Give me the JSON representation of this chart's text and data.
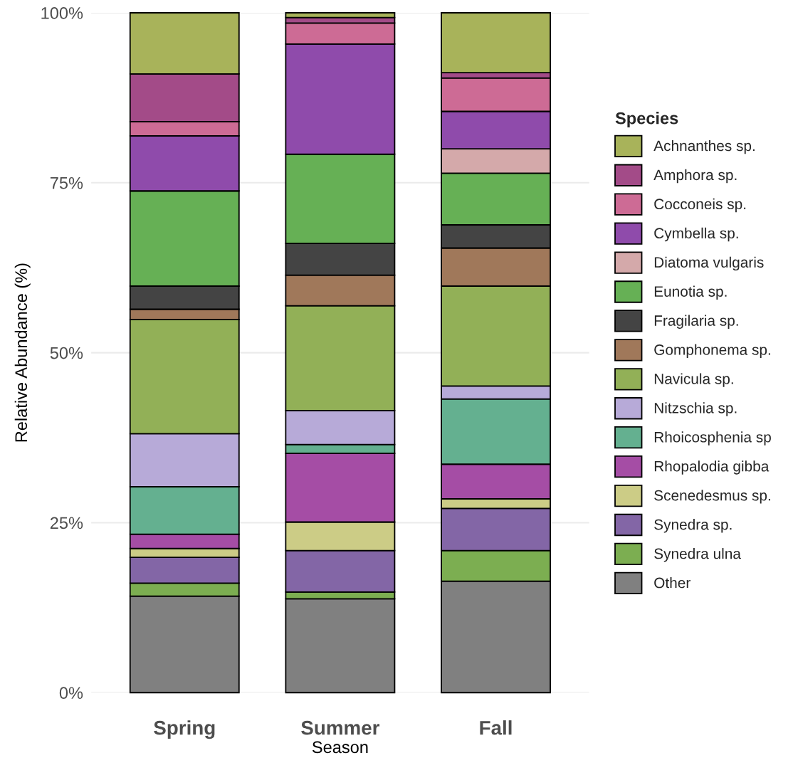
{
  "chart_data": {
    "type": "bar",
    "stacked": true,
    "xlabel": "Season",
    "ylabel": "Relative Abundance (%)",
    "legend_title": "Species",
    "legend": "right",
    "grid": "y",
    "categories": [
      "Spring",
      "Summer",
      "Fall"
    ],
    "ylim": [
      0,
      100
    ],
    "yticks": [
      {
        "value": 0,
        "label": "0%"
      },
      {
        "value": 25,
        "label": "25%"
      },
      {
        "value": 50,
        "label": "50%"
      },
      {
        "value": 75,
        "label": "75%"
      },
      {
        "value": 100,
        "label": "100%"
      }
    ],
    "series": [
      {
        "name": "Other",
        "color": "#808080",
        "values": [
          14.2,
          13.8,
          16.4
        ]
      },
      {
        "name": "Synedra ulna",
        "color": "#7cae51",
        "values": [
          1.9,
          1.0,
          4.5
        ]
      },
      {
        "name": "Synedra sp.",
        "color": "#8366a6",
        "values": [
          3.8,
          6.1,
          6.2
        ]
      },
      {
        "name": "Scenedesmus sp.",
        "color": "#cccc86",
        "values": [
          1.3,
          4.2,
          1.4
        ]
      },
      {
        "name": "Rhopalodia gibba",
        "color": "#a54da5",
        "values": [
          2.1,
          10.1,
          5.1
        ]
      },
      {
        "name": "Rhoicosphenia sp",
        "color": "#64b090",
        "values": [
          7.0,
          1.3,
          9.6
        ]
      },
      {
        "name": "Nitzschia sp.",
        "color": "#b7aad8",
        "values": [
          7.8,
          5.0,
          1.9
        ]
      },
      {
        "name": "Navicula sp.",
        "color": "#92b057",
        "values": [
          16.8,
          15.4,
          14.7
        ]
      },
      {
        "name": "Gomphonema sp.",
        "color": "#a0785a",
        "values": [
          1.5,
          4.5,
          5.6
        ]
      },
      {
        "name": "Fragilaria sp.",
        "color": "#444444",
        "values": [
          3.4,
          4.7,
          3.4
        ]
      },
      {
        "name": "Eunotia sp.",
        "color": "#66b055",
        "values": [
          14.0,
          13.1,
          7.6
        ]
      },
      {
        "name": "Diatoma vulgaris",
        "color": "#d4a9aa",
        "values": [
          0,
          0,
          3.6
        ]
      },
      {
        "name": "Cymbella sp.",
        "color": "#8f4bab",
        "values": [
          8.1,
          16.2,
          5.5
        ]
      },
      {
        "name": "Cocconeis sp.",
        "color": "#cd6b95",
        "values": [
          2.1,
          3.1,
          4.9
        ]
      },
      {
        "name": "Amphora sp.",
        "color": "#a34b88",
        "values": [
          7.0,
          0.8,
          0.8
        ]
      },
      {
        "name": "Achnanthes sp.",
        "color": "#a8b35a",
        "values": [
          9.0,
          0.7,
          8.8
        ]
      }
    ]
  }
}
